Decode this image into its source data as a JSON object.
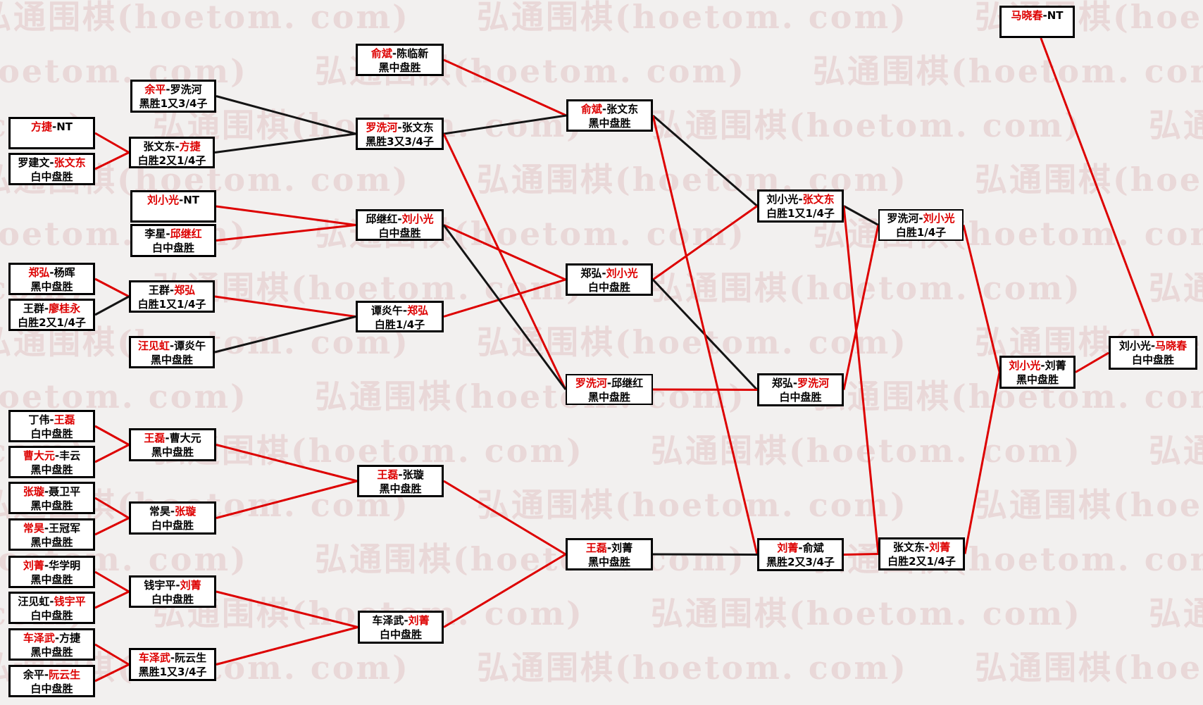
{
  "watermark": {
    "text": "弘通围棋(hoetom. com)"
  },
  "separator": "-",
  "colors": {
    "red_line": "#dd0000",
    "black_line": "#141414",
    "red_name": "#dd0000"
  },
  "matches": [
    {
      "id": "L1",
      "p1": "方捷",
      "p2": "NT",
      "p1_red": true,
      "p2_red": false,
      "result": ""
    },
    {
      "id": "L2",
      "p1": "罗建文",
      "p2": "张文东",
      "p1_red": false,
      "p2_red": true,
      "result": "白中盘胜"
    },
    {
      "id": "L3",
      "p1": "郑弘",
      "p2": "杨晖",
      "p1_red": true,
      "p2_red": false,
      "result": "黑中盘胜"
    },
    {
      "id": "L4",
      "p1": "王群",
      "p2": "廖桂永",
      "p1_red": false,
      "p2_red": true,
      "result": "白胜2又1/4子"
    },
    {
      "id": "L5",
      "p1": "丁伟",
      "p2": "王磊",
      "p1_red": false,
      "p2_red": true,
      "result": "白中盘胜"
    },
    {
      "id": "L6",
      "p1": "曹大元",
      "p2": "丰云",
      "p1_red": true,
      "p2_red": false,
      "result": "黑中盘胜"
    },
    {
      "id": "L7",
      "p1": "张璇",
      "p2": "聂卫平",
      "p1_red": true,
      "p2_red": false,
      "result": "黑中盘胜"
    },
    {
      "id": "L8",
      "p1": "常昊",
      "p2": "王冠军",
      "p1_red": true,
      "p2_red": false,
      "result": "黑中盘胜"
    },
    {
      "id": "L9",
      "p1": "刘菁",
      "p2": "华学明",
      "p1_red": true,
      "p2_red": false,
      "result": "黑中盘胜"
    },
    {
      "id": "L10",
      "p1": "汪见虹",
      "p2": "钱宇平",
      "p1_red": false,
      "p2_red": true,
      "result": "白中盘胜"
    },
    {
      "id": "L11",
      "p1": "车泽武",
      "p2": "方捷",
      "p1_red": true,
      "p2_red": false,
      "result": "黑中盘胜"
    },
    {
      "id": "L12",
      "p1": "余平",
      "p2": "阮云生",
      "p1_red": false,
      "p2_red": true,
      "result": "白中盘胜"
    },
    {
      "id": "M1",
      "p1": "余平",
      "p2": "罗洗河",
      "p1_red": true,
      "p2_red": false,
      "result": "黑胜1又3/4子"
    },
    {
      "id": "M2",
      "p1": "张文东",
      "p2": "方捷",
      "p1_red": false,
      "p2_red": true,
      "result": "白胜2又1/4子"
    },
    {
      "id": "M3",
      "p1": "刘小光",
      "p2": "NT",
      "p1_red": true,
      "p2_red": false,
      "result": ""
    },
    {
      "id": "M4",
      "p1": "李星",
      "p2": "邱继红",
      "p1_red": false,
      "p2_red": true,
      "result": "白中盘胜"
    },
    {
      "id": "M5",
      "p1": "王群",
      "p2": "郑弘",
      "p1_red": false,
      "p2_red": true,
      "result": "白胜1又1/4子"
    },
    {
      "id": "M6",
      "p1": "汪见虹",
      "p2": "谭炎午",
      "p1_red": true,
      "p2_red": false,
      "result": "黑中盘胜"
    },
    {
      "id": "M7",
      "p1": "王磊",
      "p2": "曹大元",
      "p1_red": true,
      "p2_red": false,
      "result": "黑中盘胜"
    },
    {
      "id": "M8",
      "p1": "常昊",
      "p2": "张璇",
      "p1_red": false,
      "p2_red": true,
      "result": "白中盘胜"
    },
    {
      "id": "M9",
      "p1": "钱宇平",
      "p2": "刘菁",
      "p1_red": false,
      "p2_red": true,
      "result": "白中盘胜"
    },
    {
      "id": "M10",
      "p1": "车泽武",
      "p2": "阮云生",
      "p1_red": true,
      "p2_red": false,
      "result": "黑胜1又3/4子"
    },
    {
      "id": "N1",
      "p1": "俞斌",
      "p2": "陈临新",
      "p1_red": true,
      "p2_red": false,
      "result": "黑中盘胜"
    },
    {
      "id": "N2",
      "p1": "罗洗河",
      "p2": "张文东",
      "p1_red": true,
      "p2_red": false,
      "result": "黑胜3又3/4子"
    },
    {
      "id": "N3",
      "p1": "邱继红",
      "p2": "刘小光",
      "p1_red": false,
      "p2_red": true,
      "result": "白中盘胜"
    },
    {
      "id": "N4",
      "p1": "谭炎午",
      "p2": "郑弘",
      "p1_red": false,
      "p2_red": true,
      "result": "白胜1/4子"
    },
    {
      "id": "N5",
      "p1": "王磊",
      "p2": "张璇",
      "p1_red": true,
      "p2_red": false,
      "result": "黑中盘胜"
    },
    {
      "id": "N6",
      "p1": "车泽武",
      "p2": "刘菁",
      "p1_red": false,
      "p2_red": true,
      "result": "白中盘胜"
    },
    {
      "id": "O1",
      "p1": "俞斌",
      "p2": "张文东",
      "p1_red": true,
      "p2_red": false,
      "result": "黑中盘胜"
    },
    {
      "id": "O2",
      "p1": "郑弘",
      "p2": "刘小光",
      "p1_red": false,
      "p2_red": true,
      "result": "白中盘胜"
    },
    {
      "id": "O3",
      "p1": "罗洗河",
      "p2": "邱继红",
      "p1_red": true,
      "p2_red": false,
      "result": "黑中盘胜"
    },
    {
      "id": "O4",
      "p1": "王磊",
      "p2": "刘菁",
      "p1_red": true,
      "p2_red": false,
      "result": "黑中盘胜"
    },
    {
      "id": "P1",
      "p1": "刘小光",
      "p2": "张文东",
      "p1_red": false,
      "p2_red": true,
      "result": "白胜1又1/4子"
    },
    {
      "id": "P2",
      "p1": "郑弘",
      "p2": "罗洗河",
      "p1_red": false,
      "p2_red": true,
      "result": "白中盘胜"
    },
    {
      "id": "P3",
      "p1": "刘菁",
      "p2": "俞斌",
      "p1_red": true,
      "p2_red": false,
      "result": "黑胜2又3/4子"
    },
    {
      "id": "Q1",
      "p1": "罗洗河",
      "p2": "刘小光",
      "p1_red": false,
      "p2_red": true,
      "result": "白胜1/4子"
    },
    {
      "id": "Q2",
      "p1": "张文东",
      "p2": "刘菁",
      "p1_red": false,
      "p2_red": true,
      "result": "白胜2又1/4子"
    },
    {
      "id": "R1",
      "p1": "马晓春",
      "p2": "NT",
      "p1_red": true,
      "p2_red": false,
      "result": ""
    },
    {
      "id": "R2",
      "p1": "刘小光",
      "p2": "刘菁",
      "p1_red": true,
      "p2_red": false,
      "result": "黑中盘胜"
    },
    {
      "id": "S1",
      "p1": "刘小光",
      "p2": "马晓春",
      "p1_red": false,
      "p2_red": true,
      "result": "白中盘胜"
    }
  ],
  "connections": [
    {
      "from": "L1",
      "to": "M2",
      "color": "red"
    },
    {
      "from": "L2",
      "to": "M2",
      "color": "red"
    },
    {
      "from": "L3",
      "to": "M5",
      "color": "red"
    },
    {
      "from": "L4",
      "to": "M5",
      "color": "black"
    },
    {
      "from": "M1",
      "to": "N2",
      "color": "black"
    },
    {
      "from": "M2",
      "to": "N2",
      "color": "black"
    },
    {
      "from": "M3",
      "to": "N3",
      "color": "red"
    },
    {
      "from": "M4",
      "to": "N3",
      "color": "red"
    },
    {
      "from": "M5",
      "to": "N4",
      "color": "red"
    },
    {
      "from": "M6",
      "to": "N4",
      "color": "black"
    },
    {
      "from": "N1",
      "to": "O1",
      "color": "red"
    },
    {
      "from": "N2",
      "to": "O1",
      "color": "black"
    },
    {
      "from": "N2",
      "to": "O3",
      "color": "red"
    },
    {
      "from": "N3",
      "to": "O2",
      "color": "red"
    },
    {
      "from": "N4",
      "to": "O2",
      "color": "red"
    },
    {
      "from": "N3",
      "to": "O3",
      "color": "black"
    },
    {
      "from": "O1",
      "to": "P1",
      "color": "black"
    },
    {
      "from": "O2",
      "to": "P1",
      "color": "red"
    },
    {
      "from": "O2",
      "to": "P2",
      "color": "black"
    },
    {
      "from": "O3",
      "to": "P2",
      "color": "red"
    },
    {
      "from": "O1",
      "to": "P3",
      "color": "red"
    },
    {
      "from": "O4",
      "to": "P3",
      "color": "black"
    },
    {
      "from": "P1",
      "to": "Q1",
      "color": "black"
    },
    {
      "from": "P2",
      "to": "Q1",
      "color": "red"
    },
    {
      "from": "P1",
      "to": "Q2",
      "color": "red"
    },
    {
      "from": "P3",
      "to": "Q2",
      "color": "red"
    },
    {
      "from": "Q1",
      "to": "R2",
      "color": "red"
    },
    {
      "from": "Q2",
      "to": "R2",
      "color": "red"
    },
    {
      "from": "R1",
      "to": "S1",
      "color": "red",
      "from_anchor": "bottom",
      "to_anchor": "top"
    },
    {
      "from": "R2",
      "to": "S1",
      "color": "red"
    },
    {
      "from": "L5",
      "to": "M7",
      "color": "red"
    },
    {
      "from": "L6",
      "to": "M7",
      "color": "red"
    },
    {
      "from": "L7",
      "to": "M8",
      "color": "red"
    },
    {
      "from": "L8",
      "to": "M8",
      "color": "red"
    },
    {
      "from": "L9",
      "to": "M9",
      "color": "red"
    },
    {
      "from": "L10",
      "to": "M9",
      "color": "red"
    },
    {
      "from": "L11",
      "to": "M10",
      "color": "red"
    },
    {
      "from": "L12",
      "to": "M10",
      "color": "red"
    },
    {
      "from": "M7",
      "to": "N5",
      "color": "red"
    },
    {
      "from": "M8",
      "to": "N5",
      "color": "red"
    },
    {
      "from": "M9",
      "to": "N6",
      "color": "red"
    },
    {
      "from": "M10",
      "to": "N6",
      "color": "red"
    },
    {
      "from": "N5",
      "to": "O4",
      "color": "red"
    },
    {
      "from": "N6",
      "to": "O4",
      "color": "red"
    }
  ]
}
